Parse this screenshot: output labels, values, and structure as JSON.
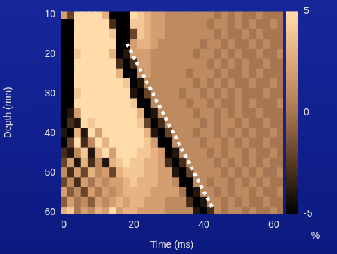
{
  "chart_data": {
    "type": "heatmap",
    "x_label": "Time (ms)",
    "y_label": "Depth (mm)",
    "x": [
      0,
      2,
      4,
      6,
      8,
      10,
      12,
      14,
      16,
      18,
      20,
      22,
      24,
      26,
      28,
      30,
      32,
      34,
      36,
      38,
      40,
      42,
      44,
      46,
      48,
      50,
      52,
      54,
      56,
      58,
      60,
      62
    ],
    "y": [
      10,
      12.5,
      15,
      17.5,
      20,
      22.5,
      25,
      27.5,
      30,
      32.5,
      35,
      37.5,
      40,
      42.5,
      45,
      47.5,
      50,
      52.5,
      55,
      57.5,
      60
    ],
    "cells": [
      [
        2,
        -2,
        5,
        5,
        5,
        5,
        3,
        -5,
        -5,
        -5,
        5,
        4,
        3,
        2,
        2,
        1,
        1,
        1,
        1,
        1,
        1,
        1,
        0,
        1,
        0,
        1,
        0,
        0,
        1,
        0,
        0,
        0
      ],
      [
        -5,
        -5,
        5,
        5,
        5,
        5,
        5,
        -3,
        -5,
        -5,
        4,
        4,
        3,
        2,
        2,
        1,
        1,
        1,
        1,
        1,
        1,
        0,
        1,
        1,
        0,
        1,
        0,
        1,
        0,
        0,
        1,
        0
      ],
      [
        -5,
        -5,
        5,
        5,
        5,
        5,
        5,
        4,
        -5,
        -5,
        -2,
        4,
        3,
        2,
        2,
        1,
        1,
        1,
        1,
        1,
        1,
        1,
        0,
        1,
        0,
        0,
        1,
        0,
        1,
        0,
        0,
        0
      ],
      [
        -5,
        -5,
        5,
        5,
        5,
        5,
        5,
        5,
        -5,
        -5,
        2,
        3,
        3,
        2,
        1,
        1,
        1,
        1,
        1,
        1,
        0,
        1,
        1,
        0,
        1,
        0,
        0,
        1,
        0,
        1,
        0,
        0
      ],
      [
        -5,
        -5,
        4,
        5,
        5,
        5,
        5,
        3,
        -5,
        -4,
        2,
        2,
        2,
        1,
        1,
        1,
        1,
        1,
        1,
        0,
        1,
        1,
        0,
        1,
        0,
        1,
        0,
        0,
        1,
        0,
        0,
        1
      ],
      [
        -5,
        -5,
        5,
        5,
        5,
        5,
        5,
        5,
        -3,
        -5,
        -3,
        2,
        2,
        1,
        1,
        1,
        1,
        1,
        1,
        1,
        1,
        0,
        1,
        0,
        1,
        0,
        1,
        0,
        0,
        1,
        0,
        0
      ],
      [
        -5,
        -5,
        5,
        5,
        5,
        5,
        5,
        5,
        3,
        -5,
        -5,
        1,
        2,
        1,
        1,
        1,
        1,
        1,
        0,
        1,
        1,
        1,
        0,
        1,
        0,
        0,
        1,
        0,
        1,
        0,
        0,
        0
      ],
      [
        -5,
        -5,
        5,
        5,
        5,
        5,
        5,
        5,
        5,
        4,
        -5,
        -4,
        1,
        1,
        1,
        1,
        1,
        1,
        1,
        0,
        1,
        0,
        1,
        0,
        1,
        0,
        0,
        1,
        0,
        0,
        1,
        0
      ],
      [
        -5,
        -5,
        4,
        5,
        5,
        5,
        5,
        5,
        5,
        5,
        -4,
        -5,
        -2,
        1,
        1,
        1,
        1,
        0,
        1,
        1,
        0,
        1,
        0,
        1,
        0,
        1,
        0,
        0,
        0,
        1,
        0,
        0
      ],
      [
        -5,
        -5,
        5,
        5,
        5,
        5,
        5,
        5,
        5,
        5,
        4,
        -5,
        -5,
        1,
        1,
        1,
        1,
        1,
        0,
        1,
        1,
        0,
        1,
        0,
        0,
        1,
        0,
        1,
        0,
        0,
        0,
        1
      ],
      [
        -5,
        -4,
        2,
        5,
        5,
        5,
        5,
        5,
        5,
        5,
        5,
        3,
        -5,
        -4,
        1,
        1,
        1,
        1,
        1,
        0,
        1,
        1,
        0,
        1,
        0,
        1,
        0,
        0,
        1,
        0,
        0,
        0
      ],
      [
        -5,
        -3,
        -4,
        5,
        4,
        5,
        5,
        5,
        5,
        5,
        5,
        4,
        -2,
        -5,
        -3,
        1,
        1,
        1,
        1,
        1,
        0,
        1,
        0,
        1,
        1,
        0,
        1,
        0,
        0,
        1,
        0,
        0
      ],
      [
        -4,
        -5,
        3,
        -4,
        5,
        2,
        5,
        5,
        5,
        5,
        5,
        5,
        3,
        -4,
        -5,
        -2,
        1,
        1,
        1,
        0,
        1,
        1,
        0,
        1,
        0,
        1,
        0,
        1,
        0,
        0,
        1,
        0
      ],
      [
        -5,
        -2,
        5,
        -3,
        1,
        5,
        3,
        5,
        5,
        5,
        5,
        5,
        4,
        2,
        -5,
        -5,
        1,
        1,
        1,
        1,
        0,
        1,
        1,
        0,
        1,
        0,
        1,
        0,
        0,
        1,
        0,
        0
      ],
      [
        -3,
        -4,
        1,
        4,
        -4,
        3,
        5,
        2,
        5,
        5,
        5,
        4,
        4,
        3,
        2,
        -5,
        -4,
        1,
        1,
        1,
        1,
        0,
        1,
        0,
        1,
        1,
        0,
        1,
        0,
        0,
        1,
        0
      ],
      [
        -2,
        2,
        -4,
        3,
        -3,
        1,
        -4,
        3,
        4,
        5,
        4,
        4,
        3,
        3,
        2,
        -3,
        -5,
        -3,
        1,
        1,
        1,
        1,
        0,
        1,
        0,
        1,
        0,
        1,
        0,
        1,
        0,
        0
      ],
      [
        1,
        -3,
        2,
        -2,
        3,
        1,
        2,
        -2,
        3,
        4,
        4,
        4,
        3,
        3,
        2,
        2,
        -4,
        -5,
        -2,
        1,
        1,
        1,
        1,
        0,
        1,
        0,
        1,
        0,
        1,
        0,
        0,
        1
      ],
      [
        -2,
        1,
        -3,
        2,
        0,
        2,
        1,
        2,
        2,
        3,
        4,
        3,
        3,
        3,
        2,
        2,
        1,
        -5,
        -5,
        1,
        1,
        0,
        1,
        1,
        0,
        1,
        0,
        1,
        0,
        1,
        0,
        0
      ],
      [
        2,
        -1,
        1,
        -2,
        2,
        0,
        2,
        1,
        2,
        3,
        3,
        3,
        3,
        2,
        2,
        2,
        2,
        0,
        -5,
        -4,
        1,
        1,
        0,
        1,
        0,
        1,
        1,
        0,
        1,
        0,
        0,
        1
      ],
      [
        -1,
        2,
        0,
        1,
        -1,
        2,
        1,
        2,
        3,
        2,
        3,
        3,
        2,
        2,
        2,
        1,
        1,
        1,
        -3,
        -5,
        -4,
        1,
        1,
        0,
        1,
        0,
        1,
        0,
        0,
        1,
        0,
        0
      ],
      [
        3,
        4,
        0,
        2,
        1,
        3,
        2,
        5,
        2,
        3,
        3,
        2,
        2,
        2,
        2,
        1,
        1,
        1,
        1,
        -4,
        -5,
        -3,
        1,
        0,
        1,
        1,
        0,
        1,
        0,
        0,
        1,
        0
      ]
    ],
    "xlim": [
      -0.8,
      62.6
    ],
    "ylim": [
      60.4,
      9.2
    ],
    "xticks": [
      0,
      20,
      40,
      60
    ],
    "yticks": [
      10,
      20,
      30,
      40,
      50,
      60
    ],
    "grid": false,
    "colorbar": {
      "range": [
        -5,
        5
      ],
      "ticks": [
        -5,
        0,
        5
      ],
      "label": "%"
    },
    "annotations": [
      {
        "type": "line",
        "x": [
          18,
          42.6
        ],
        "y": [
          17.4,
          59.1
        ],
        "color": "#ffffff",
        "line_style": "dotted"
      }
    ]
  }
}
